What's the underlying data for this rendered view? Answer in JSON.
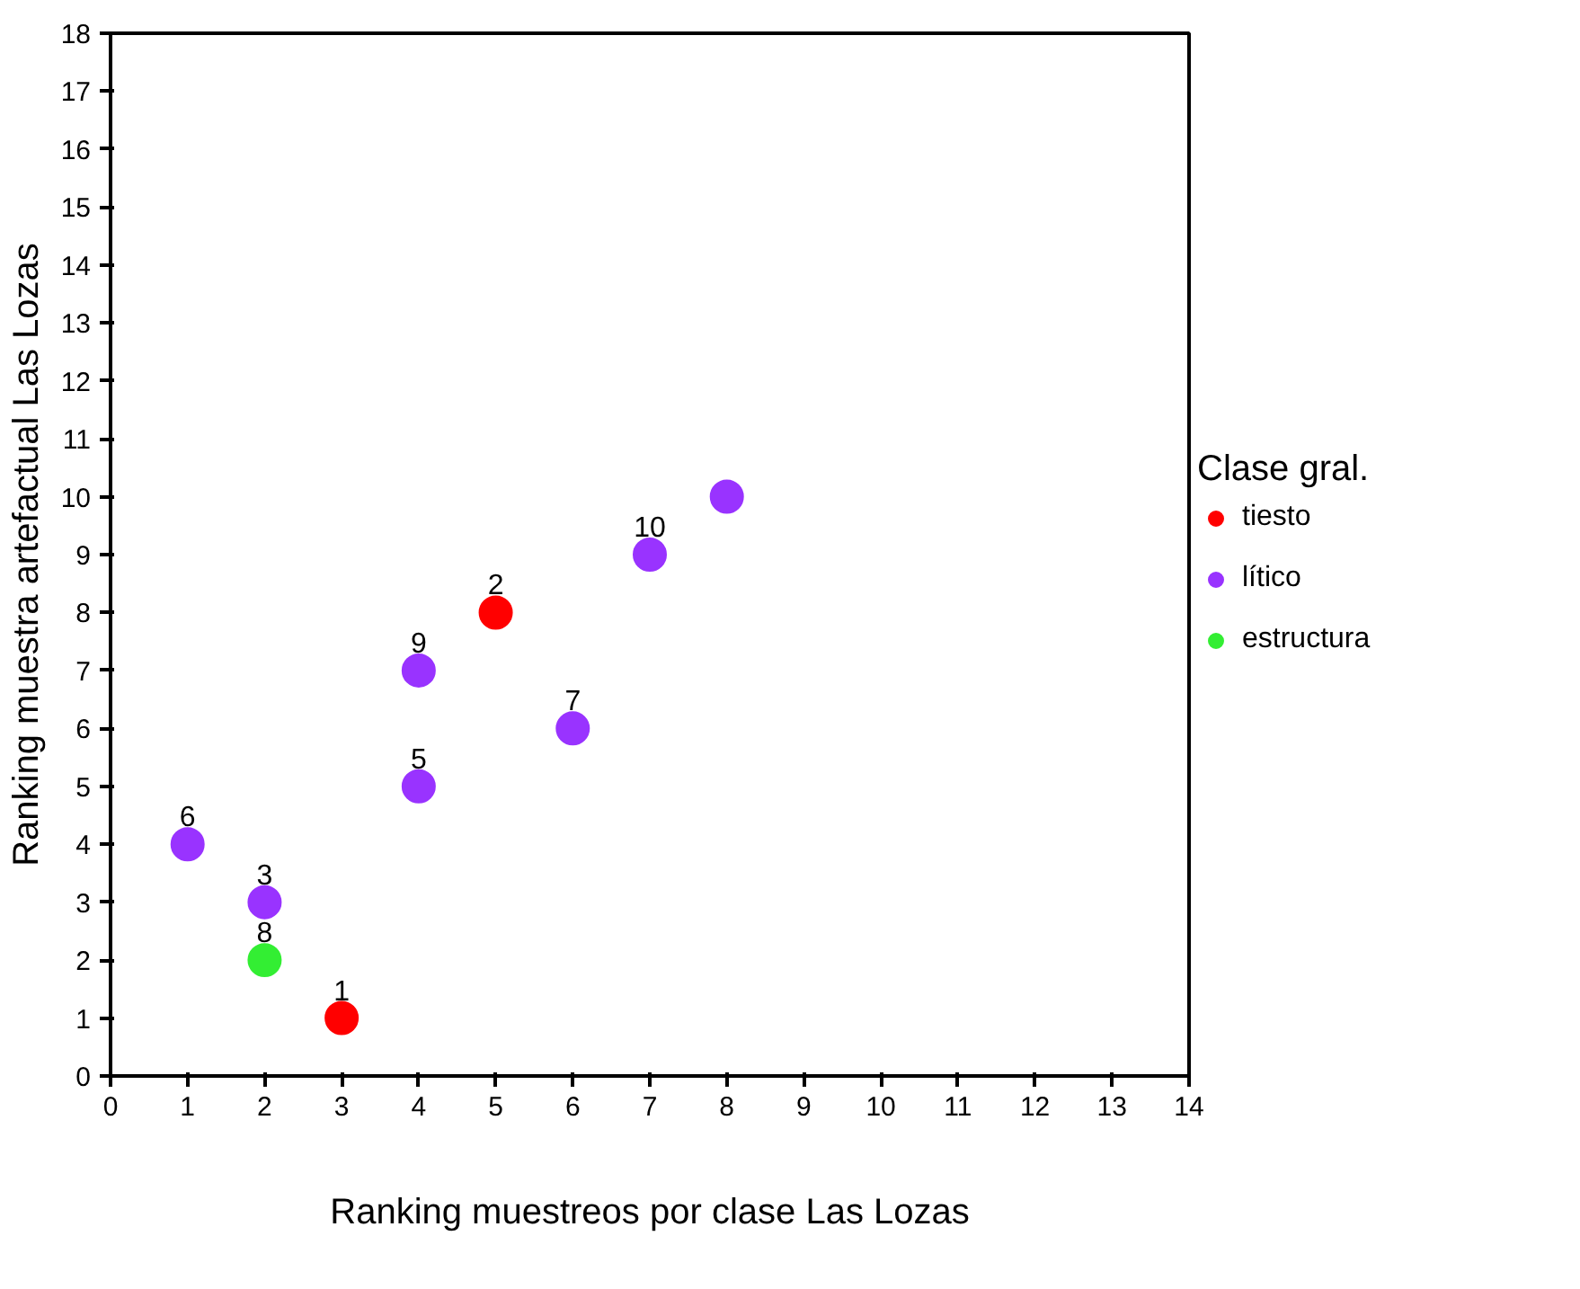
{
  "chart_data": {
    "type": "scatter",
    "xlabel": "Ranking muestreos por clase Las Lozas",
    "ylabel": "Ranking muestra artefactual Las Lozas",
    "legend_title": "Clase gral.",
    "legend": "right",
    "grid": false,
    "marker": "circle",
    "xlim": [
      0,
      14
    ],
    "xticks": [
      0,
      1,
      2,
      3,
      4,
      5,
      6,
      7,
      8,
      9,
      10,
      11,
      12,
      13,
      14
    ],
    "ylim": [
      0,
      18
    ],
    "yticks": [
      0,
      1,
      2,
      3,
      4,
      5,
      6,
      7,
      8,
      9,
      10,
      11,
      12,
      13,
      14,
      15,
      16,
      17,
      18
    ],
    "series": [
      {
        "name": "tiesto",
        "color": "#ff0000",
        "x": [
          3,
          5
        ],
        "values": [
          1,
          8
        ]
      },
      {
        "name": "lítico",
        "color": "#9933ff",
        "x": [
          1,
          2,
          4,
          4,
          6,
          7,
          8
        ],
        "values": [
          4,
          3,
          5,
          7,
          6,
          9,
          10
        ]
      },
      {
        "name": "estructura",
        "color": "#33ee33",
        "x": [
          2
        ],
        "values": [
          2
        ]
      }
    ],
    "annotations": [
      {
        "text": "1",
        "x": 3,
        "y": 1
      },
      {
        "text": "2",
        "x": 5,
        "y": 8
      },
      {
        "text": "6",
        "x": 1,
        "y": 4
      },
      {
        "text": "3",
        "x": 2,
        "y": 3
      },
      {
        "text": "5",
        "x": 4,
        "y": 5
      },
      {
        "text": "9",
        "x": 4,
        "y": 7
      },
      {
        "text": "7",
        "x": 6,
        "y": 6
      },
      {
        "text": "10",
        "x": 7,
        "y": 9
      },
      {
        "text": "8",
        "x": 2,
        "y": 2
      }
    ]
  }
}
